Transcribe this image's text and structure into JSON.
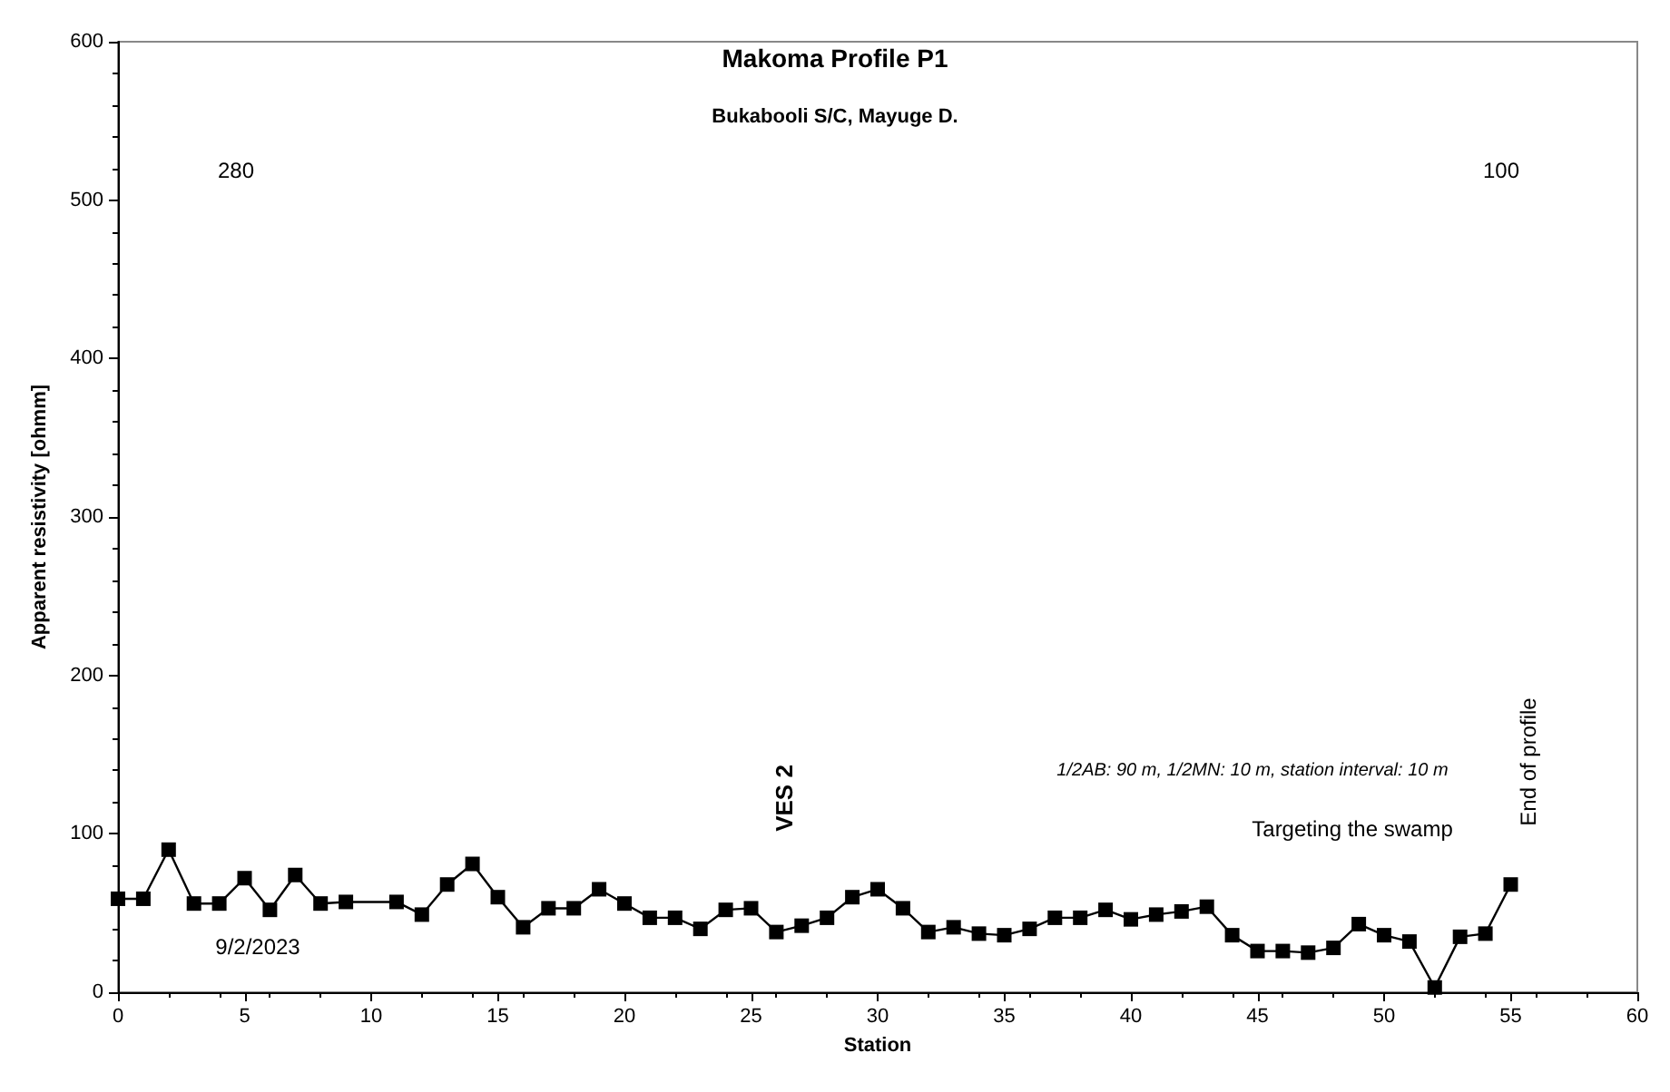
{
  "chart_data": {
    "type": "line",
    "title": "Makoma Profile P1",
    "subtitle": "Bukabooli S/C, Mayuge D.",
    "xlabel": "Station",
    "ylabel": "Apparent resistivity [ohmm]",
    "x": [
      0,
      1,
      2,
      3,
      4,
      5,
      6,
      7,
      8,
      9,
      11,
      12,
      13,
      14,
      15,
      16,
      17,
      18,
      19,
      20,
      21,
      22,
      23,
      24,
      25,
      26,
      27,
      28,
      29,
      30,
      31,
      32,
      33,
      34,
      35,
      36,
      37,
      38,
      39,
      40,
      41,
      42,
      43,
      44,
      45,
      46,
      47,
      48,
      49,
      50,
      51,
      52,
      53,
      54,
      55
    ],
    "series": [
      {
        "color": "#000000",
        "values": [
          59,
          59,
          90,
          56,
          56,
          72,
          52,
          74,
          56,
          57,
          57,
          49,
          68,
          81,
          60,
          41,
          53,
          53,
          65,
          56,
          47,
          47,
          40,
          52,
          53,
          38,
          42,
          47,
          60,
          65,
          53,
          38,
          41,
          37,
          36,
          40,
          47,
          47,
          52,
          46,
          49,
          51,
          54,
          36,
          26,
          26,
          25,
          28,
          43,
          36,
          32,
          3,
          35,
          37,
          68
        ]
      }
    ],
    "xlim": [
      0,
      60
    ],
    "xticks": [
      0,
      5,
      10,
      15,
      20,
      25,
      30,
      35,
      40,
      45,
      50,
      55,
      60
    ],
    "ylim": [
      0,
      600
    ],
    "yticks": [
      0,
      100,
      200,
      300,
      400,
      500,
      600
    ],
    "grid": false,
    "marker": "square",
    "line_style": "solid",
    "annotations": [
      "280",
      "100",
      "VES 2",
      "1/2AB: 90 m, 1/2MN: 10 m, station interval: 10 m",
      "Targeting the swamp",
      "9/2/2023",
      "End of profile"
    ]
  }
}
